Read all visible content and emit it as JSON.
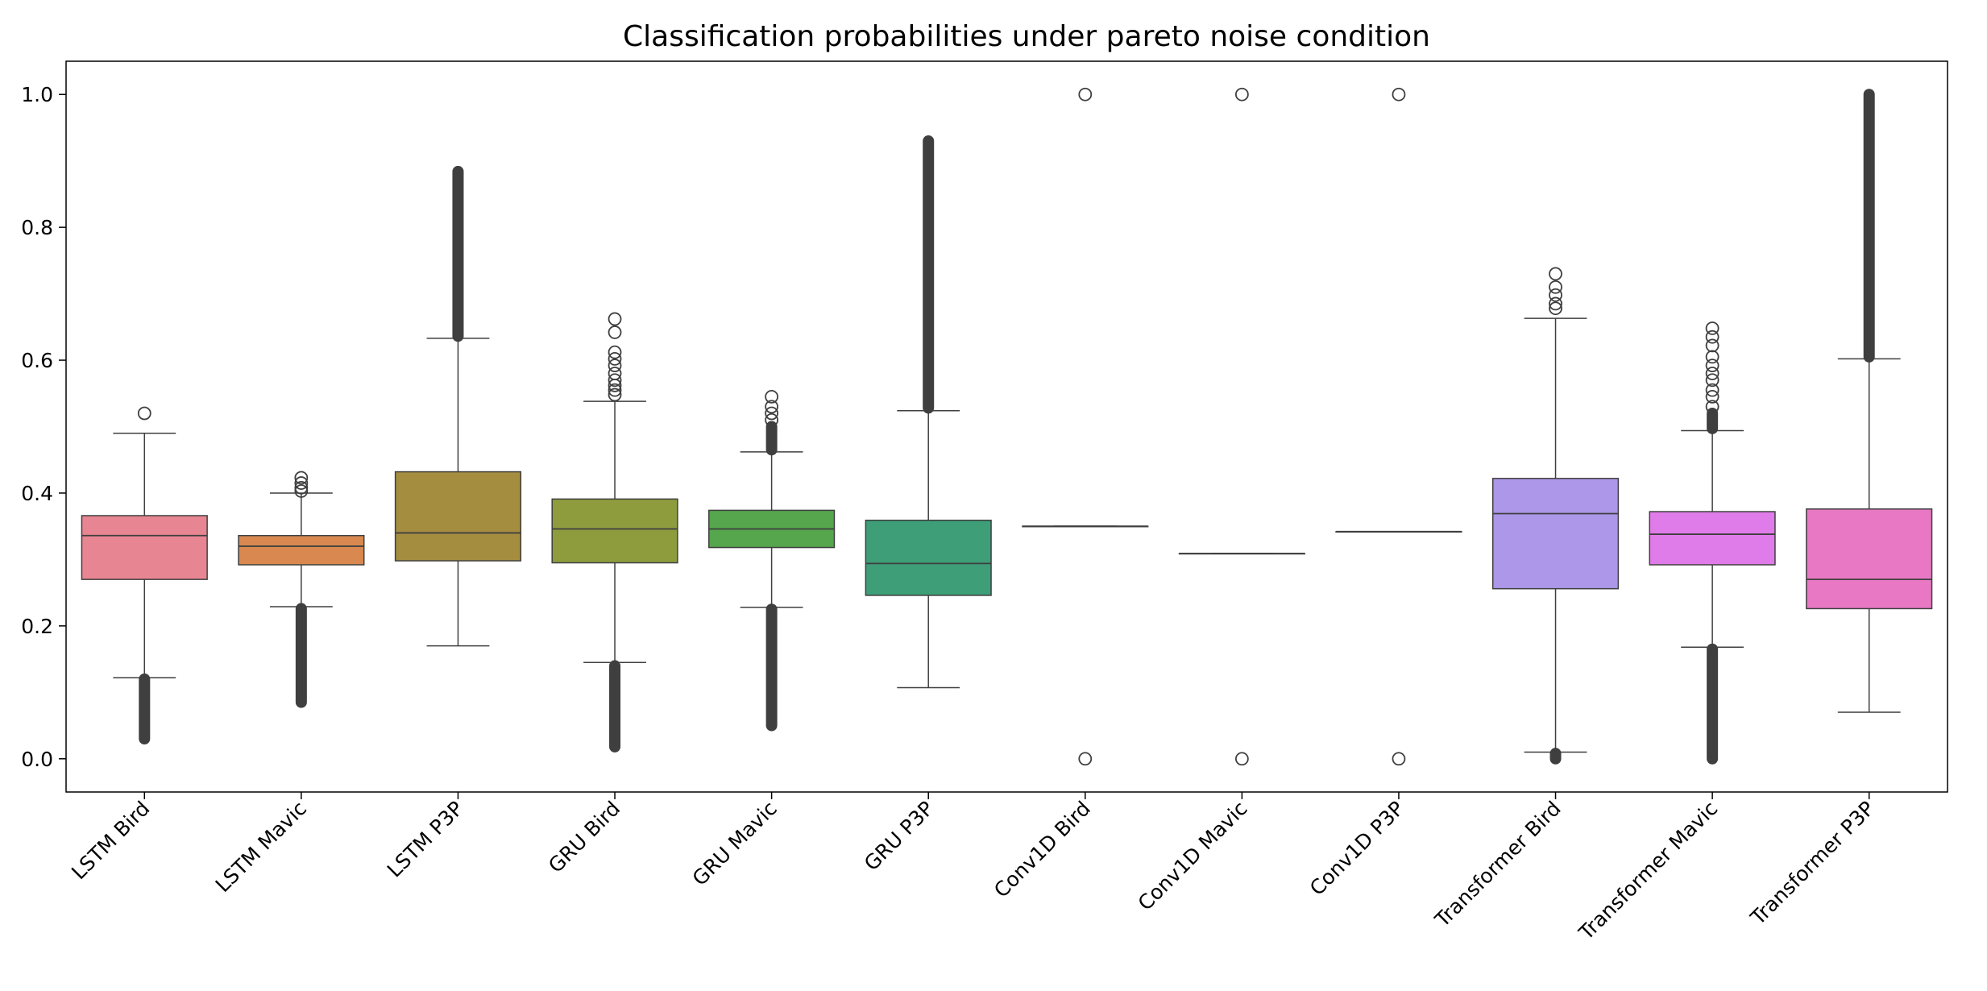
{
  "chart_data": {
    "type": "box",
    "title": "Classification probabilities under pareto noise condition",
    "xlabel": "",
    "ylabel": "",
    "ylim": [
      -0.05,
      1.05
    ],
    "yticks": [
      0.0,
      0.2,
      0.4,
      0.6,
      0.8,
      1.0
    ],
    "ytick_labels": [
      "0.0",
      "0.2",
      "0.4",
      "0.6",
      "0.8",
      "1.0"
    ],
    "grid": false,
    "legend": "none",
    "categories": [
      "LSTM Bird",
      "LSTM Mavic",
      "LSTM P3P",
      "GRU Bird",
      "GRU Mavic",
      "GRU P3P",
      "Conv1D Bird",
      "Conv1D Mavic",
      "Conv1D P3P",
      "Transformer Bird",
      "Transformer Mavic",
      "Transformer P3P"
    ],
    "colors": [
      "#e88592",
      "#d9894f",
      "#a58d3f",
      "#8e9c3e",
      "#55a64c",
      "#3d9e78",
      "#3e9ea4",
      "#44a2c6",
      "#7f9fe0",
      "#ac97e8",
      "#e07bea",
      "#e878c4"
    ],
    "boxes": [
      {
        "label": "LSTM Bird",
        "q1": 0.27,
        "median": 0.336,
        "q3": 0.366,
        "whisker_low": 0.122,
        "whisker_high": 0.49,
        "outliers_low_range": [
          0.03,
          0.12
        ],
        "outliers_low_points": [],
        "outliers_high_range": null,
        "outliers_high_points": [
          0.52
        ]
      },
      {
        "label": "LSTM Mavic",
        "q1": 0.292,
        "median": 0.32,
        "q3": 0.336,
        "whisker_low": 0.229,
        "whisker_high": 0.4,
        "outliers_low_range": [
          0.085,
          0.226
        ],
        "outliers_low_points": [],
        "outliers_high_range": null,
        "outliers_high_points": [
          0.403,
          0.408,
          0.415,
          0.423
        ]
      },
      {
        "label": "LSTM P3P",
        "q1": 0.298,
        "median": 0.34,
        "q3": 0.432,
        "whisker_low": 0.17,
        "whisker_high": 0.633,
        "outliers_low_range": null,
        "outliers_low_points": [],
        "outliers_high_range": [
          0.636,
          0.884
        ],
        "outliers_high_points": []
      },
      {
        "label": "GRU Bird",
        "q1": 0.295,
        "median": 0.346,
        "q3": 0.391,
        "whisker_low": 0.145,
        "whisker_high": 0.538,
        "outliers_low_range": [
          0.018,
          0.14
        ],
        "outliers_low_points": [],
        "outliers_high_range": null,
        "outliers_high_points": [
          0.548,
          0.555,
          0.562,
          0.57,
          0.58,
          0.592,
          0.602,
          0.612,
          0.642,
          0.662
        ]
      },
      {
        "label": "GRU Mavic",
        "q1": 0.318,
        "median": 0.346,
        "q3": 0.374,
        "whisker_low": 0.228,
        "whisker_high": 0.462,
        "outliers_low_range": [
          0.05,
          0.225
        ],
        "outliers_low_points": [],
        "outliers_high_range": [
          0.465,
          0.5
        ],
        "outliers_high_points": [
          0.51,
          0.52,
          0.53,
          0.545
        ]
      },
      {
        "label": "GRU P3P",
        "q1": 0.246,
        "median": 0.294,
        "q3": 0.359,
        "whisker_low": 0.107,
        "whisker_high": 0.524,
        "outliers_low_range": null,
        "outliers_low_points": [],
        "outliers_high_range": [
          0.528,
          0.93
        ],
        "outliers_high_points": []
      },
      {
        "label": "Conv1D Bird",
        "q1": 0.35,
        "median": 0.35,
        "q3": 0.35,
        "whisker_low": 0.35,
        "whisker_high": 0.35,
        "outliers_low_range": null,
        "outliers_low_points": [
          0.0
        ],
        "outliers_high_range": null,
        "outliers_high_points": [
          1.0
        ]
      },
      {
        "label": "Conv1D Mavic",
        "q1": 0.309,
        "median": 0.309,
        "q3": 0.309,
        "whisker_low": 0.309,
        "whisker_high": 0.309,
        "outliers_low_range": null,
        "outliers_low_points": [
          0.0
        ],
        "outliers_high_range": null,
        "outliers_high_points": [
          1.0
        ]
      },
      {
        "label": "Conv1D P3P",
        "q1": 0.342,
        "median": 0.342,
        "q3": 0.342,
        "whisker_low": 0.342,
        "whisker_high": 0.342,
        "outliers_low_range": null,
        "outliers_low_points": [
          0.0
        ],
        "outliers_high_range": null,
        "outliers_high_points": [
          1.0
        ]
      },
      {
        "label": "Transformer Bird",
        "q1": 0.256,
        "median": 0.369,
        "q3": 0.422,
        "whisker_low": 0.01,
        "whisker_high": 0.663,
        "outliers_low_range": [
          0.0,
          0.008
        ],
        "outliers_low_points": [],
        "outliers_high_range": null,
        "outliers_high_points": [
          0.678,
          0.685,
          0.698,
          0.71,
          0.73
        ]
      },
      {
        "label": "Transformer Mavic",
        "q1": 0.292,
        "median": 0.338,
        "q3": 0.372,
        "whisker_low": 0.168,
        "whisker_high": 0.494,
        "outliers_low_range": [
          0.0,
          0.165
        ],
        "outliers_low_points": [],
        "outliers_high_range": [
          0.497,
          0.52
        ],
        "outliers_high_points": [
          0.53,
          0.545,
          0.555,
          0.57,
          0.58,
          0.592,
          0.605,
          0.622,
          0.635,
          0.648
        ]
      },
      {
        "label": "Transformer P3P",
        "q1": 0.226,
        "median": 0.27,
        "q3": 0.376,
        "whisker_low": 0.07,
        "whisker_high": 0.602,
        "outliers_low_range": null,
        "outliers_low_points": [],
        "outliers_high_range": [
          0.605,
          1.0
        ],
        "outliers_high_points": []
      }
    ]
  }
}
